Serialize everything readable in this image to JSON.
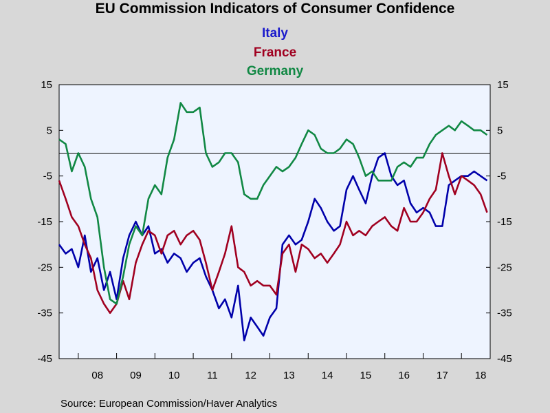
{
  "chart_data": {
    "type": "line",
    "title": "EU Commission Indicators of Consumer Confidence",
    "source": "Source:  European Commission/Haver Analytics",
    "ylim": [
      -45,
      15
    ],
    "yticks": [
      15,
      5,
      -5,
      -15,
      -25,
      -35,
      -45
    ],
    "xlim": [
      2007.5,
      2018.75
    ],
    "xticks": [
      "08",
      "09",
      "10",
      "11",
      "12",
      "13",
      "14",
      "15",
      "16",
      "17",
      "18"
    ],
    "reference_line": 0,
    "grid": false,
    "legend_placement": "top-center",
    "background": "#eef4ff",
    "series": [
      {
        "name": "Italy",
        "color": "#0000aa",
        "x": [
          2007.5,
          2007.67,
          2007.83,
          2008.0,
          2008.17,
          2008.33,
          2008.5,
          2008.67,
          2008.83,
          2009.0,
          2009.17,
          2009.33,
          2009.5,
          2009.67,
          2009.83,
          2010.0,
          2010.17,
          2010.33,
          2010.5,
          2010.67,
          2010.83,
          2011.0,
          2011.17,
          2011.33,
          2011.5,
          2011.67,
          2011.83,
          2012.0,
          2012.17,
          2012.33,
          2012.5,
          2012.67,
          2012.83,
          2013.0,
          2013.17,
          2013.33,
          2013.5,
          2013.67,
          2013.83,
          2014.0,
          2014.17,
          2014.33,
          2014.5,
          2014.67,
          2014.83,
          2015.0,
          2015.17,
          2015.33,
          2015.5,
          2015.67,
          2015.83,
          2016.0,
          2016.17,
          2016.33,
          2016.5,
          2016.67,
          2016.83,
          2017.0,
          2017.17,
          2017.33,
          2017.5,
          2017.67,
          2017.83,
          2018.0,
          2018.17,
          2018.33,
          2018.5,
          2018.67
        ],
        "values": [
          -20,
          -22,
          -21,
          -25,
          -18,
          -26,
          -23,
          -30,
          -26,
          -32,
          -23,
          -18,
          -15,
          -18,
          -16,
          -22,
          -21,
          -24,
          -22,
          -23,
          -26,
          -24,
          -23,
          -27,
          -30,
          -34,
          -32,
          -36,
          -29,
          -41,
          -36,
          -38,
          -40,
          -36,
          -34,
          -20,
          -18,
          -20,
          -19,
          -15,
          -10,
          -12,
          -15,
          -17,
          -16,
          -8,
          -5,
          -8,
          -11,
          -5,
          -1,
          0,
          -5,
          -7,
          -6,
          -11,
          -13,
          -12,
          -13,
          -16,
          -16,
          -7,
          -6,
          -5,
          -5,
          -4,
          -5,
          -6
        ]
      },
      {
        "name": "France",
        "color": "#a00020",
        "x": [
          2007.5,
          2007.67,
          2007.83,
          2008.0,
          2008.17,
          2008.33,
          2008.5,
          2008.67,
          2008.83,
          2009.0,
          2009.17,
          2009.33,
          2009.5,
          2009.67,
          2009.83,
          2010.0,
          2010.17,
          2010.33,
          2010.5,
          2010.67,
          2010.83,
          2011.0,
          2011.17,
          2011.33,
          2011.5,
          2011.67,
          2011.83,
          2012.0,
          2012.17,
          2012.33,
          2012.5,
          2012.67,
          2012.83,
          2013.0,
          2013.17,
          2013.33,
          2013.5,
          2013.67,
          2013.83,
          2014.0,
          2014.17,
          2014.33,
          2014.5,
          2014.67,
          2014.83,
          2015.0,
          2015.17,
          2015.33,
          2015.5,
          2015.67,
          2015.83,
          2016.0,
          2016.17,
          2016.33,
          2016.5,
          2016.67,
          2016.83,
          2017.0,
          2017.17,
          2017.33,
          2017.5,
          2017.67,
          2017.83,
          2018.0,
          2018.17,
          2018.33,
          2018.5,
          2018.67
        ],
        "values": [
          -6,
          -10,
          -14,
          -16,
          -20,
          -23,
          -30,
          -33,
          -35,
          -33,
          -28,
          -32,
          -24,
          -20,
          -17,
          -18,
          -22,
          -18,
          -17,
          -20,
          -18,
          -17,
          -19,
          -24,
          -30,
          -26,
          -22,
          -16,
          -25,
          -26,
          -29,
          -28,
          -29,
          -29,
          -31,
          -22,
          -20,
          -26,
          -20,
          -21,
          -23,
          -22,
          -24,
          -22,
          -20,
          -15,
          -18,
          -17,
          -18,
          -16,
          -15,
          -14,
          -16,
          -17,
          -12,
          -15,
          -15,
          -13,
          -10,
          -8,
          0,
          -5,
          -9,
          -5,
          -6,
          -7,
          -9,
          -13
        ]
      },
      {
        "name": "Germany",
        "color": "#118844",
        "x": [
          2007.5,
          2007.67,
          2007.83,
          2008.0,
          2008.17,
          2008.33,
          2008.5,
          2008.67,
          2008.83,
          2009.0,
          2009.17,
          2009.33,
          2009.5,
          2009.67,
          2009.83,
          2010.0,
          2010.17,
          2010.33,
          2010.5,
          2010.67,
          2010.83,
          2011.0,
          2011.17,
          2011.33,
          2011.5,
          2011.67,
          2011.83,
          2012.0,
          2012.17,
          2012.33,
          2012.5,
          2012.67,
          2012.83,
          2013.0,
          2013.17,
          2013.33,
          2013.5,
          2013.67,
          2013.83,
          2014.0,
          2014.17,
          2014.33,
          2014.5,
          2014.67,
          2014.83,
          2015.0,
          2015.17,
          2015.33,
          2015.5,
          2015.67,
          2015.83,
          2016.0,
          2016.17,
          2016.33,
          2016.5,
          2016.67,
          2016.83,
          2017.0,
          2017.17,
          2017.33,
          2017.5,
          2017.67,
          2017.83,
          2018.0,
          2018.17,
          2018.33,
          2018.5,
          2018.67
        ],
        "values": [
          3,
          2,
          -4,
          0,
          -3,
          -10,
          -14,
          -25,
          -32,
          -33,
          -27,
          -20,
          -16,
          -18,
          -10,
          -7,
          -9,
          -1,
          3,
          11,
          9,
          9,
          10,
          0,
          -3,
          -2,
          0,
          0,
          -2,
          -9,
          -10,
          -10,
          -7,
          -5,
          -3,
          -4,
          -3,
          -1,
          2,
          5,
          4,
          1,
          0,
          0,
          1,
          3,
          2,
          -1,
          -5,
          -4,
          -6,
          -6,
          -6,
          -3,
          -2,
          -3,
          -1,
          -1,
          2,
          4,
          5,
          6,
          5,
          7,
          6,
          5,
          5,
          4
        ]
      }
    ]
  }
}
